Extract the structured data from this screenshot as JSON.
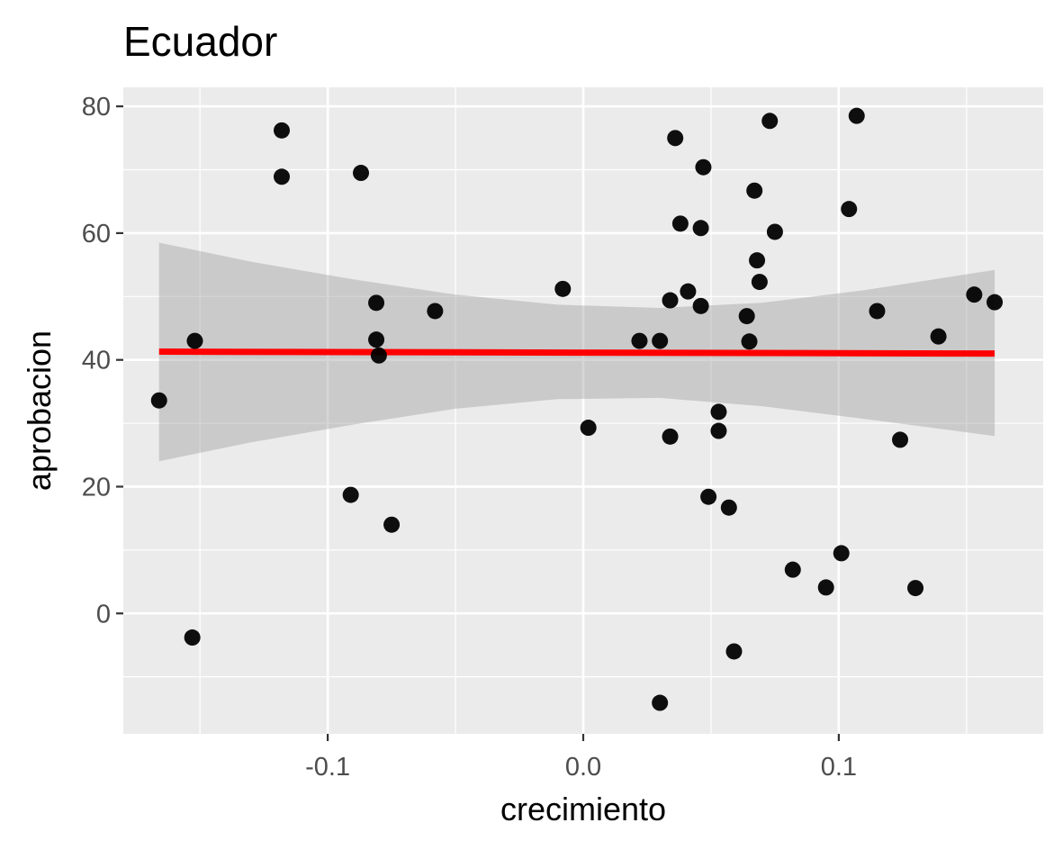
{
  "chart_data": {
    "type": "scatter",
    "title": "Ecuador",
    "xlabel": "crecimiento",
    "ylabel": "aprobacion",
    "xlim": [
      -0.18,
      0.18
    ],
    "ylim": [
      -19,
      83
    ],
    "x_ticks": [
      -0.1,
      0.0,
      0.1
    ],
    "x_tick_labels": [
      "-0.1",
      "0.0",
      "0.1"
    ],
    "y_ticks": [
      0,
      20,
      40,
      60,
      80
    ],
    "y_tick_labels": [
      "0",
      "20",
      "40",
      "60",
      "80"
    ],
    "grid": true,
    "background": "#ebebeb",
    "point_color": "#000000",
    "points": [
      {
        "x": -0.166,
        "y": 33.6
      },
      {
        "x": -0.153,
        "y": -3.8
      },
      {
        "x": -0.152,
        "y": 43.0
      },
      {
        "x": -0.118,
        "y": 76.2
      },
      {
        "x": -0.118,
        "y": 68.9
      },
      {
        "x": -0.091,
        "y": 18.7
      },
      {
        "x": -0.087,
        "y": 69.5
      },
      {
        "x": -0.081,
        "y": 49.0
      },
      {
        "x": -0.081,
        "y": 43.2
      },
      {
        "x": -0.08,
        "y": 40.7
      },
      {
        "x": -0.075,
        "y": 14.0
      },
      {
        "x": -0.058,
        "y": 47.7
      },
      {
        "x": -0.008,
        "y": 51.2
      },
      {
        "x": 0.002,
        "y": 29.3
      },
      {
        "x": 0.022,
        "y": 43.0
      },
      {
        "x": 0.03,
        "y": 43.0
      },
      {
        "x": 0.03,
        "y": -14.1
      },
      {
        "x": 0.034,
        "y": 49.4
      },
      {
        "x": 0.034,
        "y": 27.9
      },
      {
        "x": 0.036,
        "y": 75.0
      },
      {
        "x": 0.038,
        "y": 61.5
      },
      {
        "x": 0.041,
        "y": 50.8
      },
      {
        "x": 0.046,
        "y": 60.8
      },
      {
        "x": 0.046,
        "y": 48.5
      },
      {
        "x": 0.047,
        "y": 70.4
      },
      {
        "x": 0.049,
        "y": 18.4
      },
      {
        "x": 0.053,
        "y": 28.8
      },
      {
        "x": 0.053,
        "y": 31.8
      },
      {
        "x": 0.057,
        "y": 16.7
      },
      {
        "x": 0.059,
        "y": -6.0
      },
      {
        "x": 0.064,
        "y": 46.9
      },
      {
        "x": 0.065,
        "y": 42.9
      },
      {
        "x": 0.067,
        "y": 66.7
      },
      {
        "x": 0.068,
        "y": 55.7
      },
      {
        "x": 0.069,
        "y": 52.3
      },
      {
        "x": 0.073,
        "y": 77.7
      },
      {
        "x": 0.075,
        "y": 60.2
      },
      {
        "x": 0.082,
        "y": 6.9
      },
      {
        "x": 0.095,
        "y": 4.1
      },
      {
        "x": 0.101,
        "y": 9.5
      },
      {
        "x": 0.104,
        "y": 63.8
      },
      {
        "x": 0.107,
        "y": 78.5
      },
      {
        "x": 0.115,
        "y": 47.7
      },
      {
        "x": 0.124,
        "y": 27.4
      },
      {
        "x": 0.13,
        "y": 4.0
      },
      {
        "x": 0.139,
        "y": 43.7
      },
      {
        "x": 0.153,
        "y": 50.3
      },
      {
        "x": 0.161,
        "y": 49.1
      }
    ],
    "trend_line": {
      "color": "#ff0000",
      "x": [
        -0.166,
        0.161
      ],
      "y": [
        41.3,
        41.0
      ]
    },
    "confidence_band": {
      "color": "#999999",
      "x": [
        -0.166,
        -0.13,
        -0.09,
        -0.05,
        -0.01,
        0.03,
        0.07,
        0.11,
        0.161
      ],
      "lower": [
        24.0,
        27.0,
        29.8,
        32.3,
        33.8,
        34.0,
        32.7,
        30.7,
        28.0
      ],
      "upper": [
        58.5,
        55.5,
        52.7,
        50.3,
        48.7,
        48.2,
        49.0,
        51.0,
        54.2
      ]
    }
  }
}
